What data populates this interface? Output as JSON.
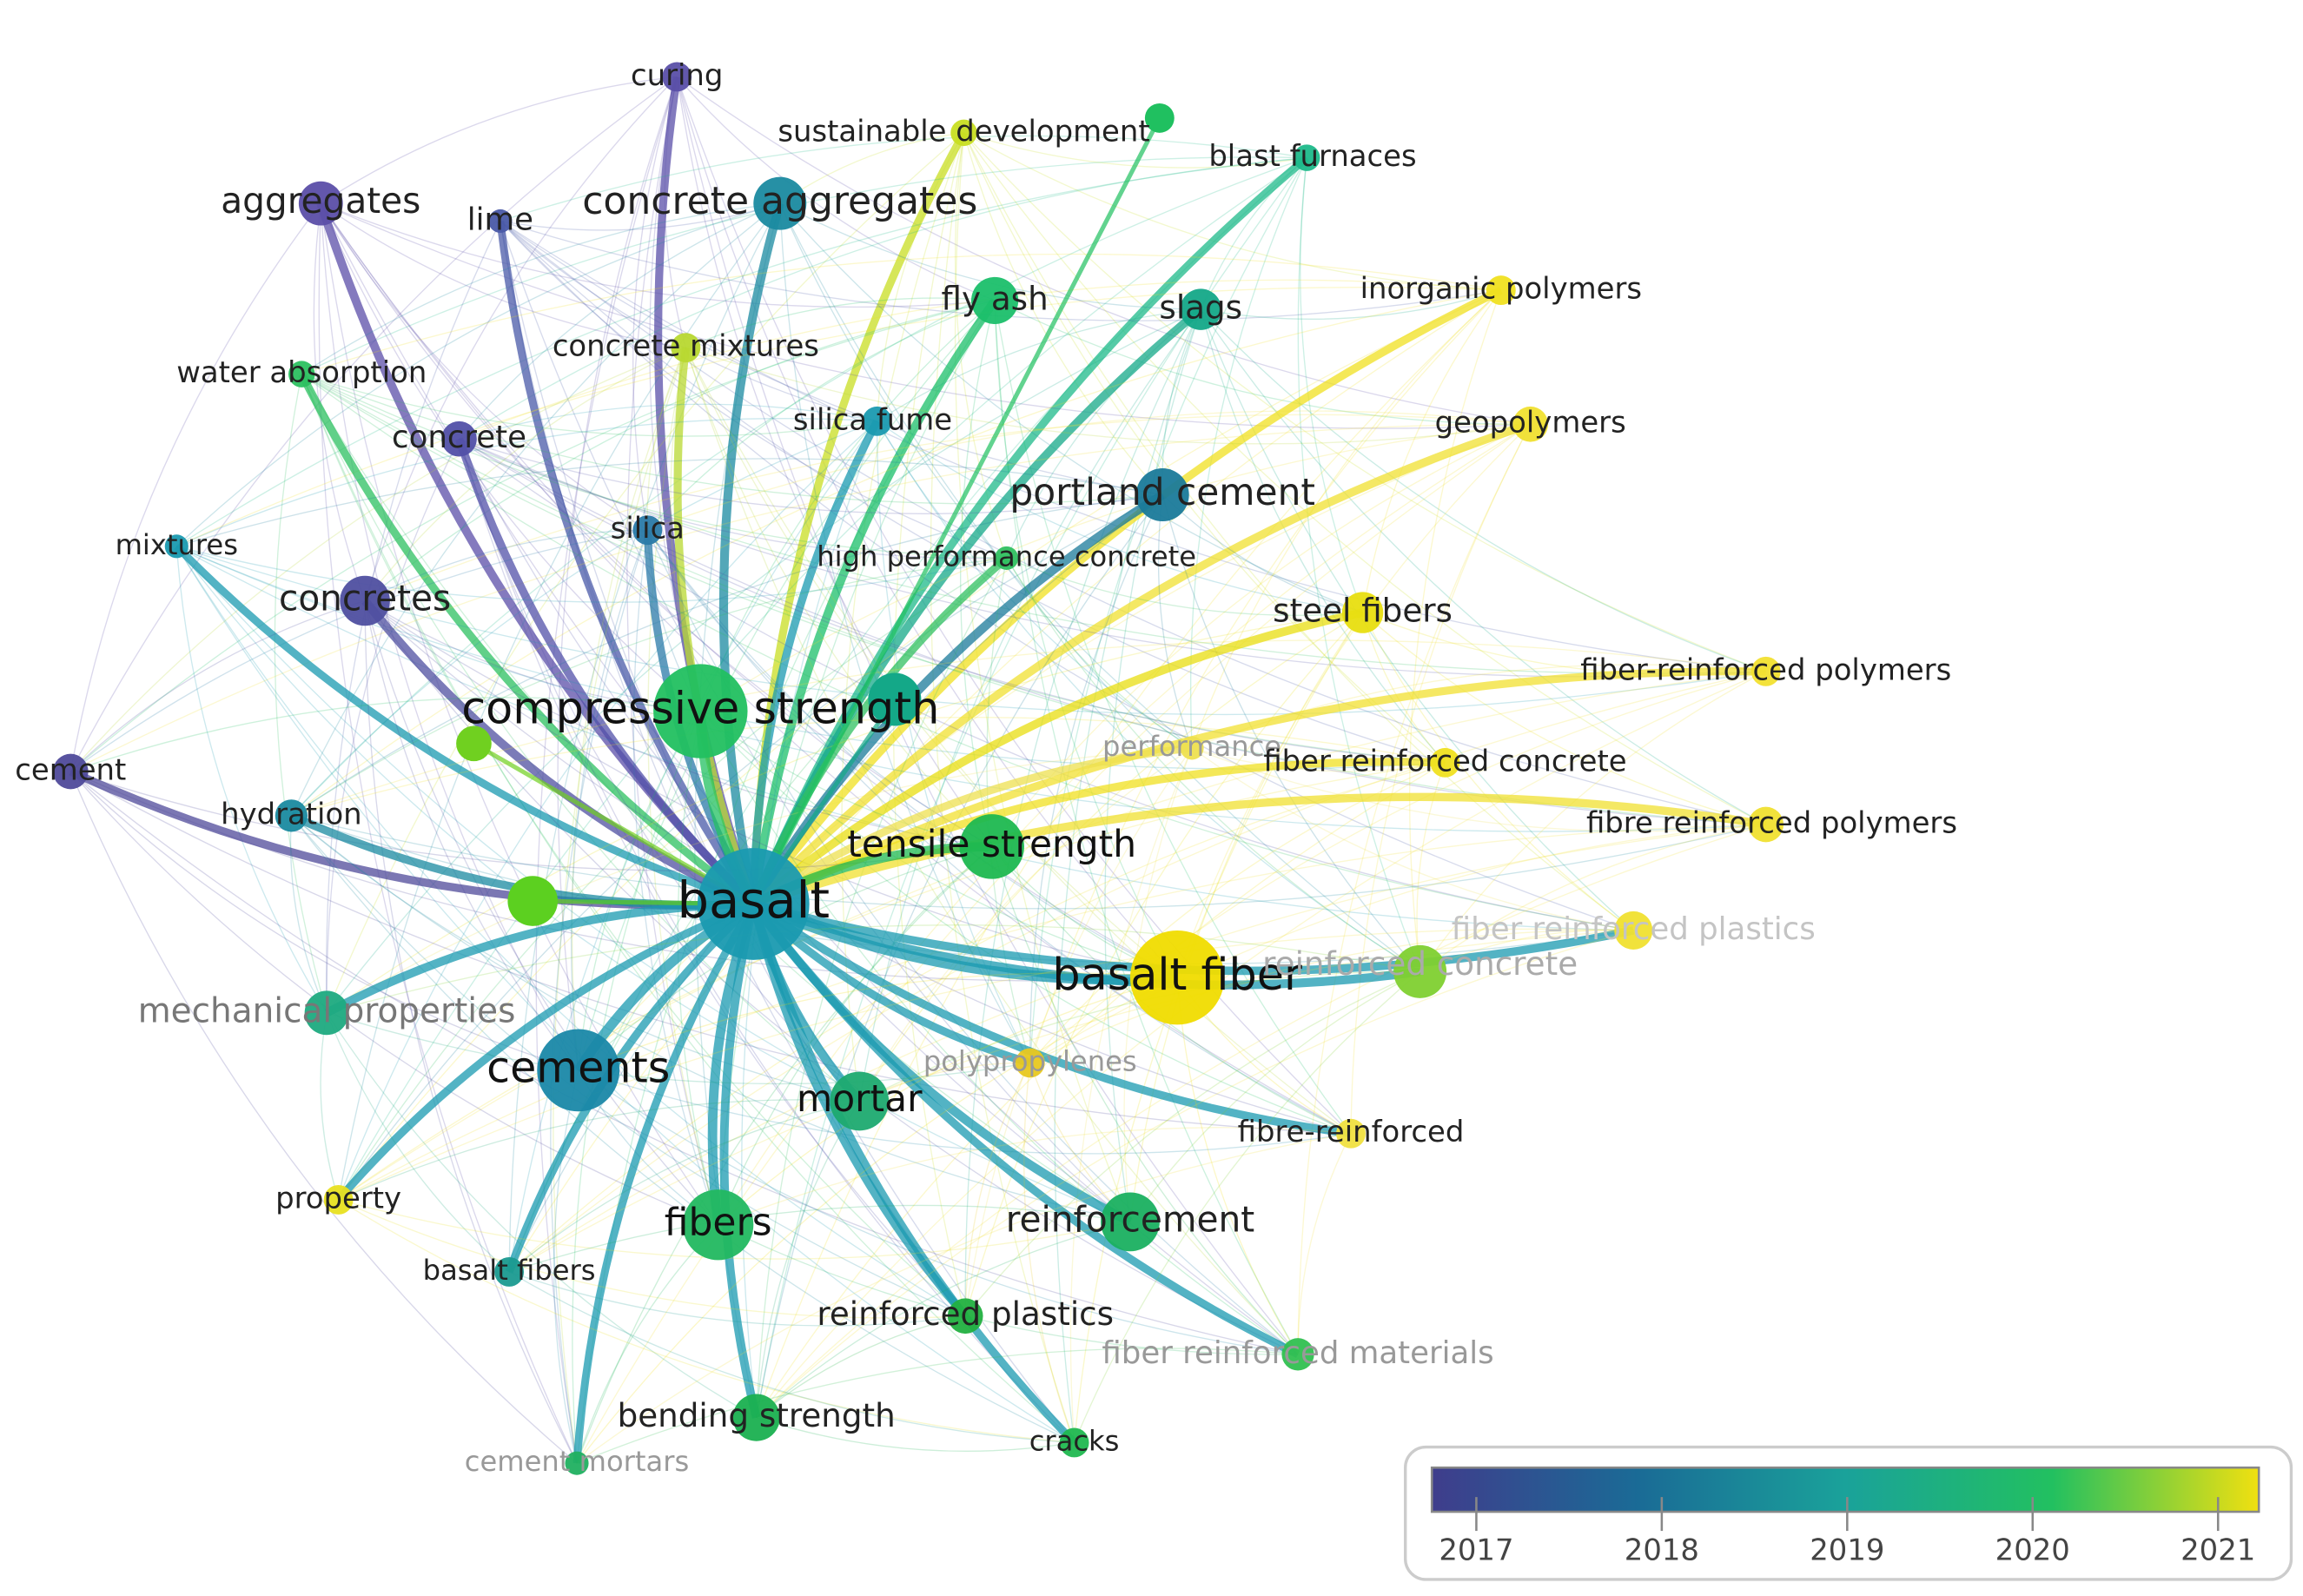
{
  "nodes": [
    {
      "label": "curing",
      "color": "#5a4fa8"
    },
    {
      "label": "sustainable development",
      "color": "#c8de22"
    },
    {
      "label": "blast furnaces",
      "color": "#1db98a"
    },
    {
      "label": "aggregates",
      "color": "#5b4ea8"
    },
    {
      "label": "lime",
      "color": "#4a5aa8"
    },
    {
      "label": "concrete aggregates",
      "color": "#1a8aa0"
    },
    {
      "label": "fly ash",
      "color": "#1bbf6a"
    },
    {
      "label": "slags",
      "color": "#14a888"
    },
    {
      "label": "inorganic polymers",
      "color": "#f0e020"
    },
    {
      "label": "concrete mixtures",
      "color": "#b8d830"
    },
    {
      "label": "water absorption",
      "color": "#2cc060"
    },
    {
      "label": "silica fume",
      "color": "#1a9ab0"
    },
    {
      "label": "geopolymers",
      "color": "#f0e030"
    },
    {
      "label": "concrete",
      "color": "#5250a8"
    },
    {
      "label": "portland cement",
      "color": "#1a7a9a"
    },
    {
      "label": "silica",
      "color": "#2a7aa8"
    },
    {
      "label": "mixtures",
      "color": "#1a9ab0"
    },
    {
      "label": "high performance concrete",
      "color": "#30c060"
    },
    {
      "label": "concretes",
      "color": "#4f4fa0"
    },
    {
      "label": "steel fibers",
      "color": "#e8de10"
    },
    {
      "label": "fiber-reinforced polymers",
      "color": "#f2e030"
    },
    {
      "label": "compressive strength",
      "color": "#22c060"
    },
    {
      "label": "performance",
      "color": "#eee050"
    },
    {
      "label": "fiber reinforced concrete",
      "color": "#f0e020"
    },
    {
      "label": "cement",
      "color": "#4f4a9a"
    },
    {
      "label": "hydration",
      "color": "#1a8aa0"
    },
    {
      "label": "fibre reinforced polymers",
      "color": "#f0e030"
    },
    {
      "label": "tensile strength",
      "color": "#1eb850"
    },
    {
      "label": "basalt",
      "color": "#1a9ab0"
    },
    {
      "label": "fiber reinforced plastics",
      "color": "#f0e030"
    },
    {
      "label": "basalt fiber",
      "color": "#f0dc00"
    },
    {
      "label": "reinforced concrete",
      "color": "#80d030"
    },
    {
      "label": "mechanical properties",
      "color": "#1eaa80"
    },
    {
      "label": "cements",
      "color": "#1a88a8"
    },
    {
      "label": "polypropylenes",
      "color": "#e8c820"
    },
    {
      "label": "mortar",
      "color": "#1eaa70"
    },
    {
      "label": "fibre-reinforced",
      "color": "#f0e040"
    },
    {
      "label": "property",
      "color": "#e8e020"
    },
    {
      "label": "reinforcement",
      "color": "#1ab060"
    },
    {
      "label": "fibers",
      "color": "#22b860"
    },
    {
      "label": "basalt fibers",
      "color": "#1a9a90"
    },
    {
      "label": "reinforced plastics",
      "color": "#22b040"
    },
    {
      "label": "fiber reinforced materials",
      "color": "#30c050"
    },
    {
      "label": "bending strength",
      "color": "#1ab050"
    },
    {
      "label": "cracks",
      "color": "#20b850"
    },
    {
      "label": "cement mortars",
      "color": "#20b060"
    }
  ],
  "legend": {
    "lim": [
      2016.76,
      2021.22
    ],
    "ticks": [
      2017,
      2018,
      2019,
      2020,
      2021
    ],
    "colors": [
      "#3f3d8c",
      "#1a6b96",
      "#1aa29a",
      "#22c060",
      "#f0e010"
    ]
  }
}
